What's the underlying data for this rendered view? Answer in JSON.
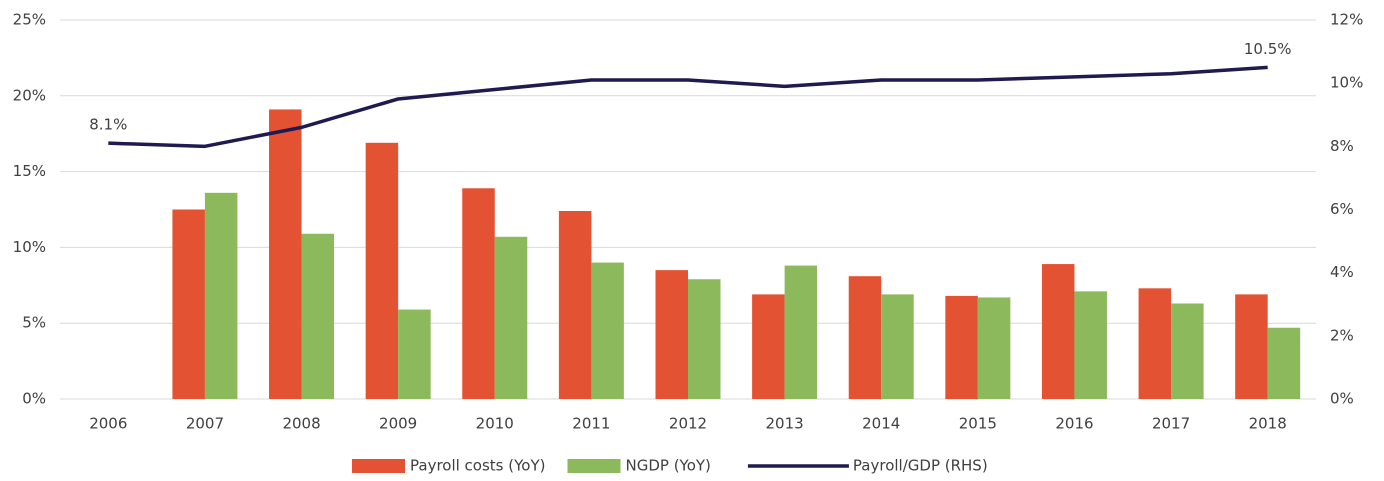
{
  "chart_data": {
    "type": "bar-line",
    "categories": [
      "2006",
      "2007",
      "2008",
      "2009",
      "2010",
      "2011",
      "2012",
      "2013",
      "2014",
      "2015",
      "2016",
      "2017",
      "2018"
    ],
    "series": [
      {
        "name": "Payroll costs (YoY)",
        "type": "bar",
        "color": "#e35233",
        "values": [
          null,
          12.5,
          19.1,
          16.9,
          13.9,
          12.4,
          8.5,
          6.9,
          8.1,
          6.8,
          8.9,
          7.3,
          6.9
        ]
      },
      {
        "name": "NGDP (YoY)",
        "type": "bar",
        "color": "#8cb95c",
        "values": [
          null,
          13.6,
          10.9,
          5.9,
          10.7,
          9.0,
          7.9,
          8.8,
          6.9,
          6.7,
          7.1,
          6.3,
          4.7
        ]
      },
      {
        "name": "Payroll/GDP (RHS)",
        "type": "line",
        "axis": "y2",
        "color": "#1f1a4f",
        "values": [
          8.1,
          8.0,
          8.6,
          9.5,
          9.8,
          10.1,
          10.1,
          9.9,
          10.1,
          10.1,
          10.2,
          10.3,
          10.5
        ],
        "value_labels": [
          "8.1%",
          null,
          null,
          null,
          null,
          null,
          null,
          null,
          null,
          null,
          null,
          null,
          "10.5%"
        ]
      }
    ],
    "ylim": [
      0,
      25
    ],
    "yticks": [
      {
        "value": 0,
        "label": "0%"
      },
      {
        "value": 5,
        "label": "5%"
      },
      {
        "value": 10,
        "label": "10%"
      },
      {
        "value": 15,
        "label": "15%"
      },
      {
        "value": 20,
        "label": "20%"
      },
      {
        "value": 25,
        "label": "25%"
      }
    ],
    "y2lim": [
      0,
      12
    ],
    "y2ticks": [
      {
        "value": 0,
        "label": "0%"
      },
      {
        "value": 2,
        "label": "2%"
      },
      {
        "value": 4,
        "label": "4%"
      },
      {
        "value": 6,
        "label": "6%"
      },
      {
        "value": 8,
        "label": "8%"
      },
      {
        "value": 10,
        "label": "10%"
      },
      {
        "value": 12,
        "label": "12%"
      }
    ],
    "grid": true,
    "legend": "bottom"
  }
}
